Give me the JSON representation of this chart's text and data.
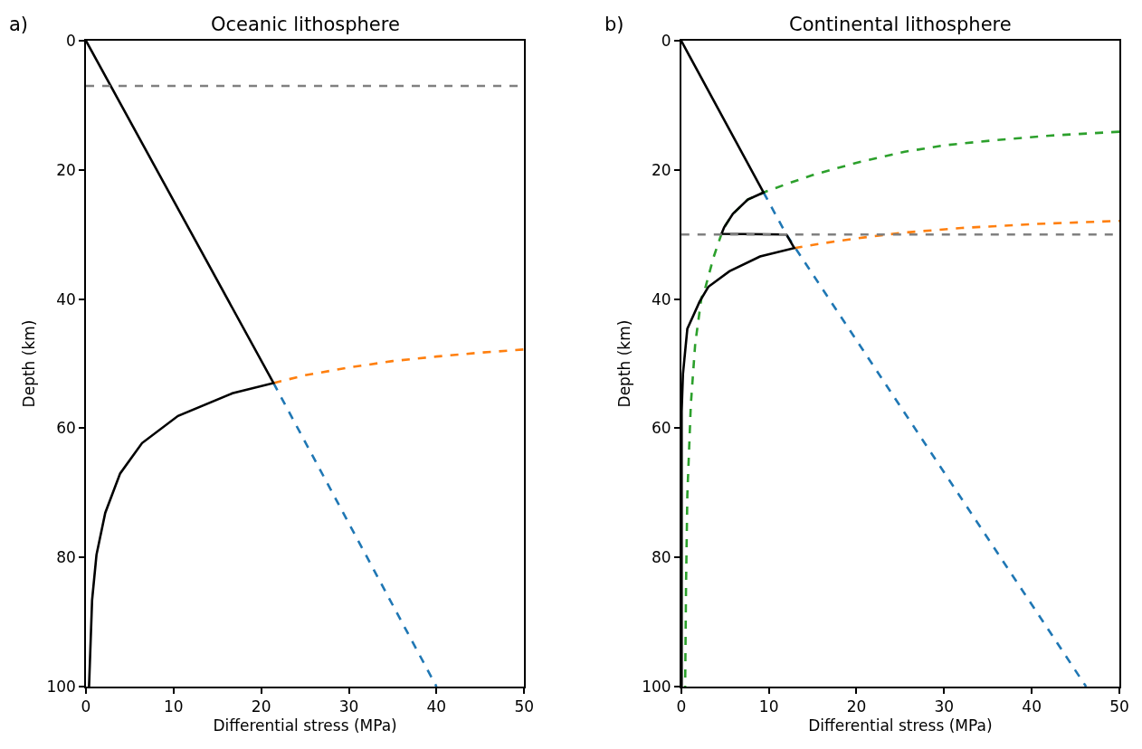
{
  "chart_data": [
    {
      "type": "line",
      "title": "Oceanic lithosphere",
      "xlabel": "Differential stress (MPa)",
      "ylabel": "Depth (km)",
      "annotations": [
        "a)"
      ],
      "xlim": [
        0,
        50
      ],
      "ylim": [
        100,
        0
      ],
      "xticks": [
        0,
        10,
        20,
        30,
        40,
        50
      ],
      "yticks": [
        0,
        20,
        40,
        60,
        80,
        100
      ],
      "series": [
        {
          "color": "#1f77b4",
          "line_style": "dashed",
          "x": [
            21.4,
            40
          ],
          "values": [
            53.0,
            100
          ]
        },
        {
          "color": "#ff7f0e",
          "line_style": "dashed",
          "x": [
            21.4,
            25,
            30,
            35,
            40,
            45,
            50
          ],
          "values": [
            53.0,
            51.8,
            50.6,
            49.6,
            48.9,
            48.3,
            47.8
          ]
        },
        {
          "color": "#000000",
          "line_style": "solid",
          "x": [
            0,
            21.4,
            16.7,
            10.5,
            6.4,
            3.9,
            2.2,
            1.2,
            0.7,
            0.35
          ],
          "values": [
            0,
            53.0,
            54.6,
            58.1,
            62.3,
            67.0,
            73.1,
            79.6,
            86.6,
            100
          ]
        }
      ],
      "ref_lines": [
        {
          "axis": "y",
          "value": 7,
          "color": "#808080",
          "line_style": "dashed"
        }
      ]
    },
    {
      "type": "line",
      "title": "Continental lithosphere",
      "xlabel": "Differential stress (MPa)",
      "ylabel": "Depth (km)",
      "annotations": [
        "b)"
      ],
      "xlim": [
        0,
        50
      ],
      "ylim": [
        100,
        0
      ],
      "xticks": [
        0,
        10,
        20,
        30,
        40,
        50
      ],
      "yticks": [
        0,
        20,
        40,
        60,
        80,
        100
      ],
      "series": [
        {
          "color": "#1f77b4",
          "line_style": "dashed",
          "x": [
            9.4,
            12.0,
            46.2
          ],
          "values": [
            23.5,
            30.0,
            100
          ]
        },
        {
          "color": "#2ca02c",
          "line_style": "dashed",
          "x": [
            50,
            42,
            35.8,
            30,
            25.5,
            20,
            15,
            12,
            9.4,
            7.6,
            5.9,
            4.9,
            4.6,
            3.7,
            2.8,
            2.3,
            1.6,
            1.1,
            0.7,
            0.55,
            0.45
          ],
          "values": [
            14.1,
            14.7,
            15.4,
            16.2,
            17.2,
            18.9,
            20.8,
            22.2,
            23.5,
            24.6,
            26.8,
            28.9,
            29.9,
            33.5,
            38.0,
            39.9,
            46.9,
            56.3,
            70.3,
            84.3,
            100
          ]
        },
        {
          "color": "#ff7f0e",
          "line_style": "dashed",
          "x": [
            12.9,
            16,
            20,
            25.5,
            32,
            40,
            50
          ],
          "values": [
            32.1,
            31.4,
            30.6,
            29.7,
            29.0,
            28.4,
            27.9
          ]
        },
        {
          "color": "#000000",
          "line_style": "solid",
          "x": [
            0,
            9.4,
            7.6,
            5.9,
            4.9,
            4.6,
            12.0,
            12.9,
            9.0,
            5.5,
            3.1,
            2.1,
            0.7,
            0.2,
            0.05,
            0.05
          ],
          "values": [
            0,
            23.5,
            24.6,
            26.8,
            28.9,
            29.9,
            30.0,
            32.1,
            33.4,
            35.7,
            38.1,
            40.4,
            44.6,
            51.6,
            57.4,
            100
          ]
        }
      ],
      "ref_lines": [
        {
          "axis": "y",
          "value": 30,
          "color": "#808080",
          "line_style": "dashed"
        }
      ]
    }
  ]
}
